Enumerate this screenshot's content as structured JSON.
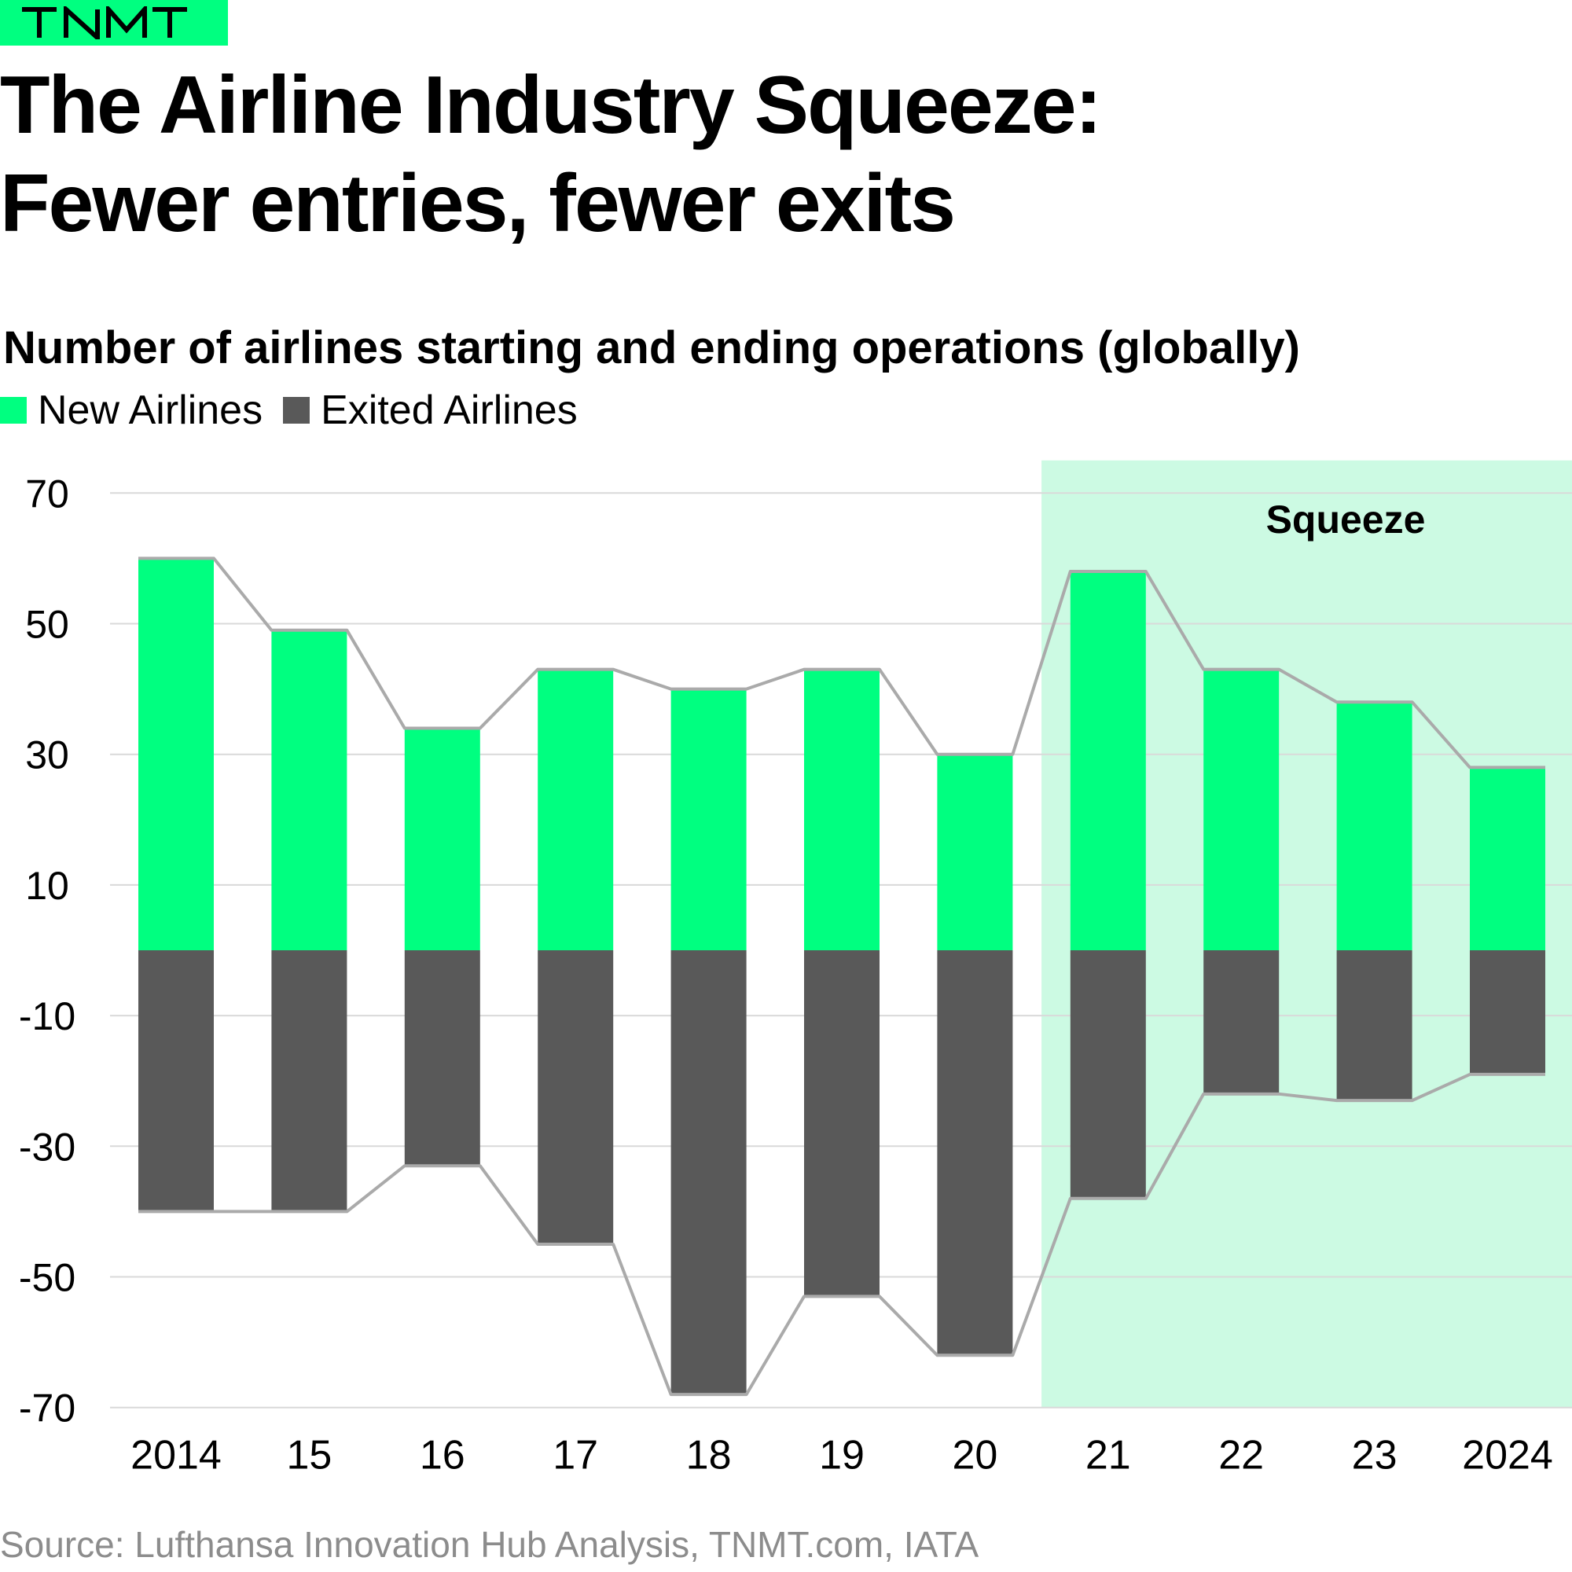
{
  "brand": {
    "logo_text": "TNMT",
    "accent_color": "#00ff80"
  },
  "header": {
    "title_line1": "The Airline Industry Squeeze:",
    "title_line2": "Fewer entries, fewer exits"
  },
  "chart_data": {
    "type": "bar",
    "title": "Number of airlines starting and ending operations (globally)",
    "xlabel": "",
    "ylabel": "",
    "categories": [
      "2014",
      "15",
      "16",
      "17",
      "18",
      "19",
      "20",
      "21",
      "22",
      "23",
      "2024"
    ],
    "series": [
      {
        "name": "New Airlines",
        "color": "#00ff80",
        "values": [
          60,
          49,
          34,
          43,
          40,
          43,
          30,
          58,
          43,
          38,
          28
        ]
      },
      {
        "name": "Exited Airlines",
        "color": "#595959",
        "values": [
          -40,
          -40,
          -33,
          -45,
          -68,
          -53,
          -62,
          -38,
          -22,
          -23,
          -19
        ]
      }
    ],
    "yticks": [
      70,
      50,
      30,
      10,
      -10,
      -30,
      -50,
      -70
    ],
    "ylim": [
      -70,
      75
    ],
    "grid": true,
    "legend_position": "top-left",
    "connector_line_color": "#aaaaaa",
    "highlight": {
      "label": "Squeeze",
      "from_category": "21",
      "to_category": "2024",
      "color": "#ccfae3"
    }
  },
  "footer": {
    "source": "Source: Lufthansa Innovation Hub Analysis, TNMT.com, IATA"
  }
}
